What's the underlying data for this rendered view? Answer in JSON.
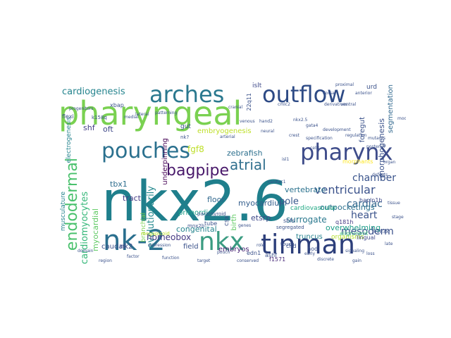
{
  "palette": {
    "dark_purple": "#440154",
    "indigo": "#3b528b",
    "teal_dark": "#31688e",
    "teal": "#21908d",
    "sea": "#35b779",
    "lime": "#7ad151",
    "yellow_green": "#bddf26",
    "yellow": "#fde725"
  },
  "words": [
    {
      "text": "pharyngeal",
      "color": "#7ad151"
    },
    {
      "text": "nkx2.6",
      "color": "#1f7f8c"
    },
    {
      "text": "tinman",
      "color": "#2c3e7a"
    },
    {
      "text": "outflow",
      "color": "#2d4a85"
    },
    {
      "text": "arches",
      "color": "#2a788e"
    },
    {
      "text": "pouches",
      "color": "#2a708e"
    },
    {
      "text": "pharynx",
      "color": "#3e4c8a"
    },
    {
      "text": "nk-2",
      "color": "#2a6f8e"
    },
    {
      "text": "nkx",
      "color": "#3b9c82"
    },
    {
      "text": "endodermal",
      "color": "#4ac16d"
    },
    {
      "text": "bagpipe",
      "color": "#48186a"
    },
    {
      "text": "atrial",
      "color": "#31708e"
    },
    {
      "text": "chamber",
      "color": "#3a548c"
    },
    {
      "text": "ventricular",
      "color": "#3b528b"
    },
    {
      "text": "cardiac",
      "color": "#31668e"
    },
    {
      "text": "heart",
      "color": "#3a538b"
    },
    {
      "text": "mesoderm",
      "color": "#3b518b"
    },
    {
      "text": "cardiogenesis",
      "color": "#25848e"
    },
    {
      "text": "cardiomyocytes",
      "color": "#35b779"
    },
    {
      "text": "myocardial",
      "color": "#5ec962"
    },
    {
      "text": "evolutionarily",
      "color": "#23898e"
    },
    {
      "text": "homeobox",
      "color": "#443983"
    },
    {
      "text": "myocardium",
      "color": "#355f8d"
    },
    {
      "text": "embryos",
      "color": "#482475"
    },
    {
      "text": "outpocketings",
      "color": "#2c728e"
    },
    {
      "text": "overwhelming",
      "color": "#1f9e89"
    },
    {
      "text": "surrogate",
      "color": "#2a788e"
    },
    {
      "text": "vertebrate",
      "color": "#2c728e"
    },
    {
      "text": "zebrafish",
      "color": "#2d708e"
    },
    {
      "text": "pole",
      "color": "#38588c"
    },
    {
      "text": "tbx1",
      "color": "#2e6e8e"
    },
    {
      "text": "fgf8",
      "color": "#bddf26"
    },
    {
      "text": "shf",
      "color": "#433e85"
    },
    {
      "text": "oft",
      "color": "#3f4889"
    },
    {
      "text": "etsrp",
      "color": "#3e4989"
    },
    {
      "text": "tract",
      "color": "#443a83"
    },
    {
      "text": "floor",
      "color": "#31688e"
    },
    {
      "text": "congenital",
      "color": "#25848e"
    },
    {
      "text": "primordia",
      "color": "#1fa088"
    },
    {
      "text": "field",
      "color": "#3b528b"
    },
    {
      "text": "caudal",
      "color": "#3b528b"
    },
    {
      "text": "nk2",
      "color": "#3e4a89"
    },
    {
      "text": "truncus",
      "color": "#26828e"
    },
    {
      "text": "embryogenesis",
      "color": "#bddf26"
    },
    {
      "text": "underpinning",
      "color": "#440154"
    },
    {
      "text": "morphogenesis",
      "color": "#3b528b"
    },
    {
      "text": "segmentation",
      "color": "#31688e"
    },
    {
      "text": "foregut",
      "color": "#3b528b"
    },
    {
      "text": "islt",
      "color": "#3e4989"
    },
    {
      "text": "urd",
      "color": "#3b528b"
    },
    {
      "text": "xbap",
      "color": "#3b528b"
    },
    {
      "text": "gut",
      "color": "#3b528b"
    },
    {
      "text": "musculature",
      "color": "#25848e"
    },
    {
      "text": "electrogenesis",
      "color": "#25848e"
    },
    {
      "text": "cardiovascular",
      "color": "#22a884"
    },
    {
      "text": "organisms",
      "color": "#b2dd2d"
    },
    {
      "text": "q181h",
      "color": "#443983"
    },
    {
      "text": "hapln1b",
      "color": "#3e4989"
    },
    {
      "text": "lingual",
      "color": "#3e4989"
    },
    {
      "text": "ashf",
      "color": "#3b528b"
    },
    {
      "text": "chd",
      "color": "#3b528b"
    },
    {
      "text": "hod",
      "color": "#3b528b"
    },
    {
      "text": "shfs",
      "color": "#3b528b"
    },
    {
      "text": "f1571",
      "color": "#482878"
    },
    {
      "text": "edn1",
      "color": "#3b528b"
    },
    {
      "text": "tube",
      "color": "#3b528b"
    },
    {
      "text": "birth",
      "color": "#5ec962"
    },
    {
      "text": "branchial",
      "color": "#7ad151"
    },
    {
      "text": "alignment",
      "color": "#35b779"
    },
    {
      "text": "morphants",
      "color": "#fde725"
    },
    {
      "text": "csx",
      "color": "#3b528b"
    },
    {
      "text": "nk?",
      "color": "#3b528b"
    },
    {
      "text": "22q11",
      "color": "#3b528b"
    },
    {
      "text": "flexi",
      "color": "#3b528b"
    },
    {
      "text": "k158q",
      "color": "#3b528b"
    },
    {
      "text": "parathyroid",
      "color": "#3b528b"
    },
    {
      "text": "mnx2b",
      "color": "#3b528b"
    },
    {
      "text": "megapicoid",
      "color": "#bddf26"
    },
    {
      "text": "segregated",
      "color": "#3b528b"
    },
    {
      "text": "touch",
      "color": "#3b528b"
    },
    {
      "text": "nkx2.5",
      "color": "#3b528b"
    },
    {
      "text": "k183x",
      "color": "#3b528b"
    },
    {
      "text": "discrete",
      "color": "#3b528b"
    },
    {
      "text": "cardiac1",
      "color": "#3b528b"
    },
    {
      "text": "proximal",
      "color": "#3b528b"
    },
    {
      "text": "dorsal",
      "color": "#3b528b"
    },
    {
      "text": "cmlc2",
      "color": "#3b528b"
    },
    {
      "text": "gata4",
      "color": "#3b528b"
    },
    {
      "text": "hand2",
      "color": "#3b528b"
    },
    {
      "text": "isl1",
      "color": "#3b528b"
    },
    {
      "text": "ventral",
      "color": "#3b528b"
    },
    {
      "text": "anterior",
      "color": "#3b528b"
    },
    {
      "text": "posterior",
      "color": "#3b528b"
    },
    {
      "text": "arterial",
      "color": "#3b528b"
    },
    {
      "text": "venous",
      "color": "#3b528b"
    },
    {
      "text": "lateral",
      "color": "#3b528b"
    },
    {
      "text": "medial",
      "color": "#3b528b"
    },
    {
      "text": "cranial",
      "color": "#3b528b"
    },
    {
      "text": "neural",
      "color": "#3b528b"
    },
    {
      "text": "crest",
      "color": "#3b528b"
    },
    {
      "text": "derivatives",
      "color": "#3b528b"
    },
    {
      "text": "conserved",
      "color": "#3b528b"
    },
    {
      "text": "specification",
      "color": "#3b528b"
    },
    {
      "text": "patterning",
      "color": "#3b528b"
    },
    {
      "text": "progenitors",
      "color": "#3b528b"
    },
    {
      "text": "signaling",
      "color": "#3b528b"
    },
    {
      "text": "expression",
      "color": "#3b528b"
    },
    {
      "text": "function",
      "color": "#3b528b"
    },
    {
      "text": "development",
      "color": "#3b528b"
    },
    {
      "text": "regulation",
      "color": "#3b528b"
    },
    {
      "text": "mutants",
      "color": "#3b528b"
    },
    {
      "text": "defects",
      "color": "#3b528b"
    },
    {
      "text": "pouch",
      "color": "#3b528b"
    },
    {
      "text": "cells",
      "color": "#3b528b"
    },
    {
      "text": "genes",
      "color": "#3b528b"
    },
    {
      "text": "role",
      "color": "#3b528b"
    },
    {
      "text": "early",
      "color": "#3b528b"
    },
    {
      "text": "late",
      "color": "#3b528b"
    },
    {
      "text": "loss",
      "color": "#3b528b"
    },
    {
      "text": "gain",
      "color": "#3b528b"
    },
    {
      "text": "target",
      "color": "#3b528b"
    },
    {
      "text": "factor",
      "color": "#3b528b"
    },
    {
      "text": "domain",
      "color": "#3b528b"
    },
    {
      "text": "region",
      "color": "#3b528b"
    },
    {
      "text": "stage",
      "color": "#3b528b"
    },
    {
      "text": "tissue",
      "color": "#3b528b"
    },
    {
      "text": "organ",
      "color": "#3b528b"
    },
    {
      "text": "model",
      "color": "#3b528b"
    }
  ]
}
